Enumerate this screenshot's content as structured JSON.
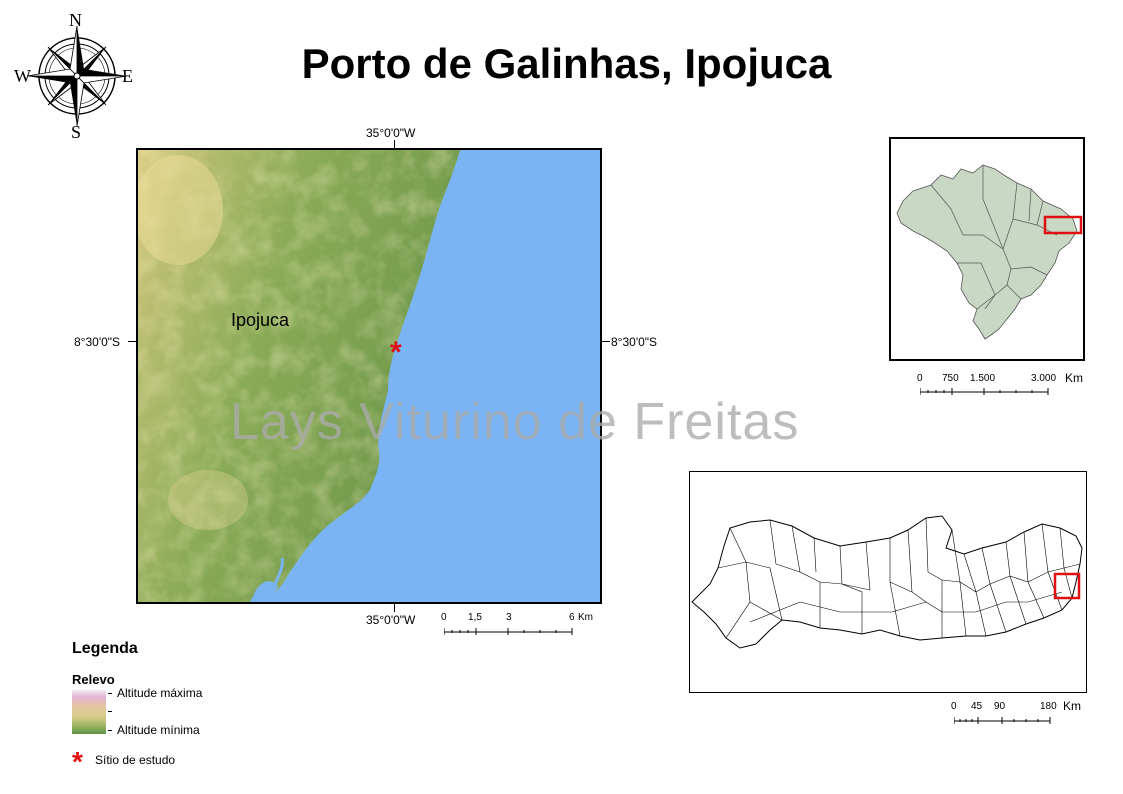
{
  "title": "Porto de Galinhas, Ipojuca",
  "compass": {
    "n": "N",
    "s": "S",
    "e": "E",
    "w": "W"
  },
  "main_map": {
    "coord_top": "35°0'0\"W",
    "coord_bottom": "35°0'0\"W",
    "coord_left": "8°30'0\"S",
    "coord_right": "8°30'0\"S",
    "place_label": "Ipojuca",
    "site_marker": "*",
    "colors": {
      "sea": "#7ab4f5",
      "land_low": "#6f9a4c",
      "land_high": "#e9dc9c"
    }
  },
  "watermark": "Lays Viturino de Freitas",
  "scalebar_main": {
    "ticks": [
      "0",
      "1,5",
      "3",
      "6"
    ],
    "unit": "Km"
  },
  "inset_brazil": {
    "ticks": [
      "0",
      "750",
      "1.500",
      "3.000"
    ],
    "unit": "Km",
    "fill": "#c8d8c4",
    "highlight": "#e01010"
  },
  "inset_pernambuco": {
    "ticks": [
      "0",
      "45",
      "90",
      "180"
    ],
    "unit": "Km",
    "highlight": "#e01010"
  },
  "legend": {
    "title": "Legenda",
    "relief_title": "Relevo",
    "alt_max": "Altitude máxima",
    "alt_min": "Altitude mínima",
    "site_label": "Sítio de estudo",
    "site_symbol": "*"
  }
}
